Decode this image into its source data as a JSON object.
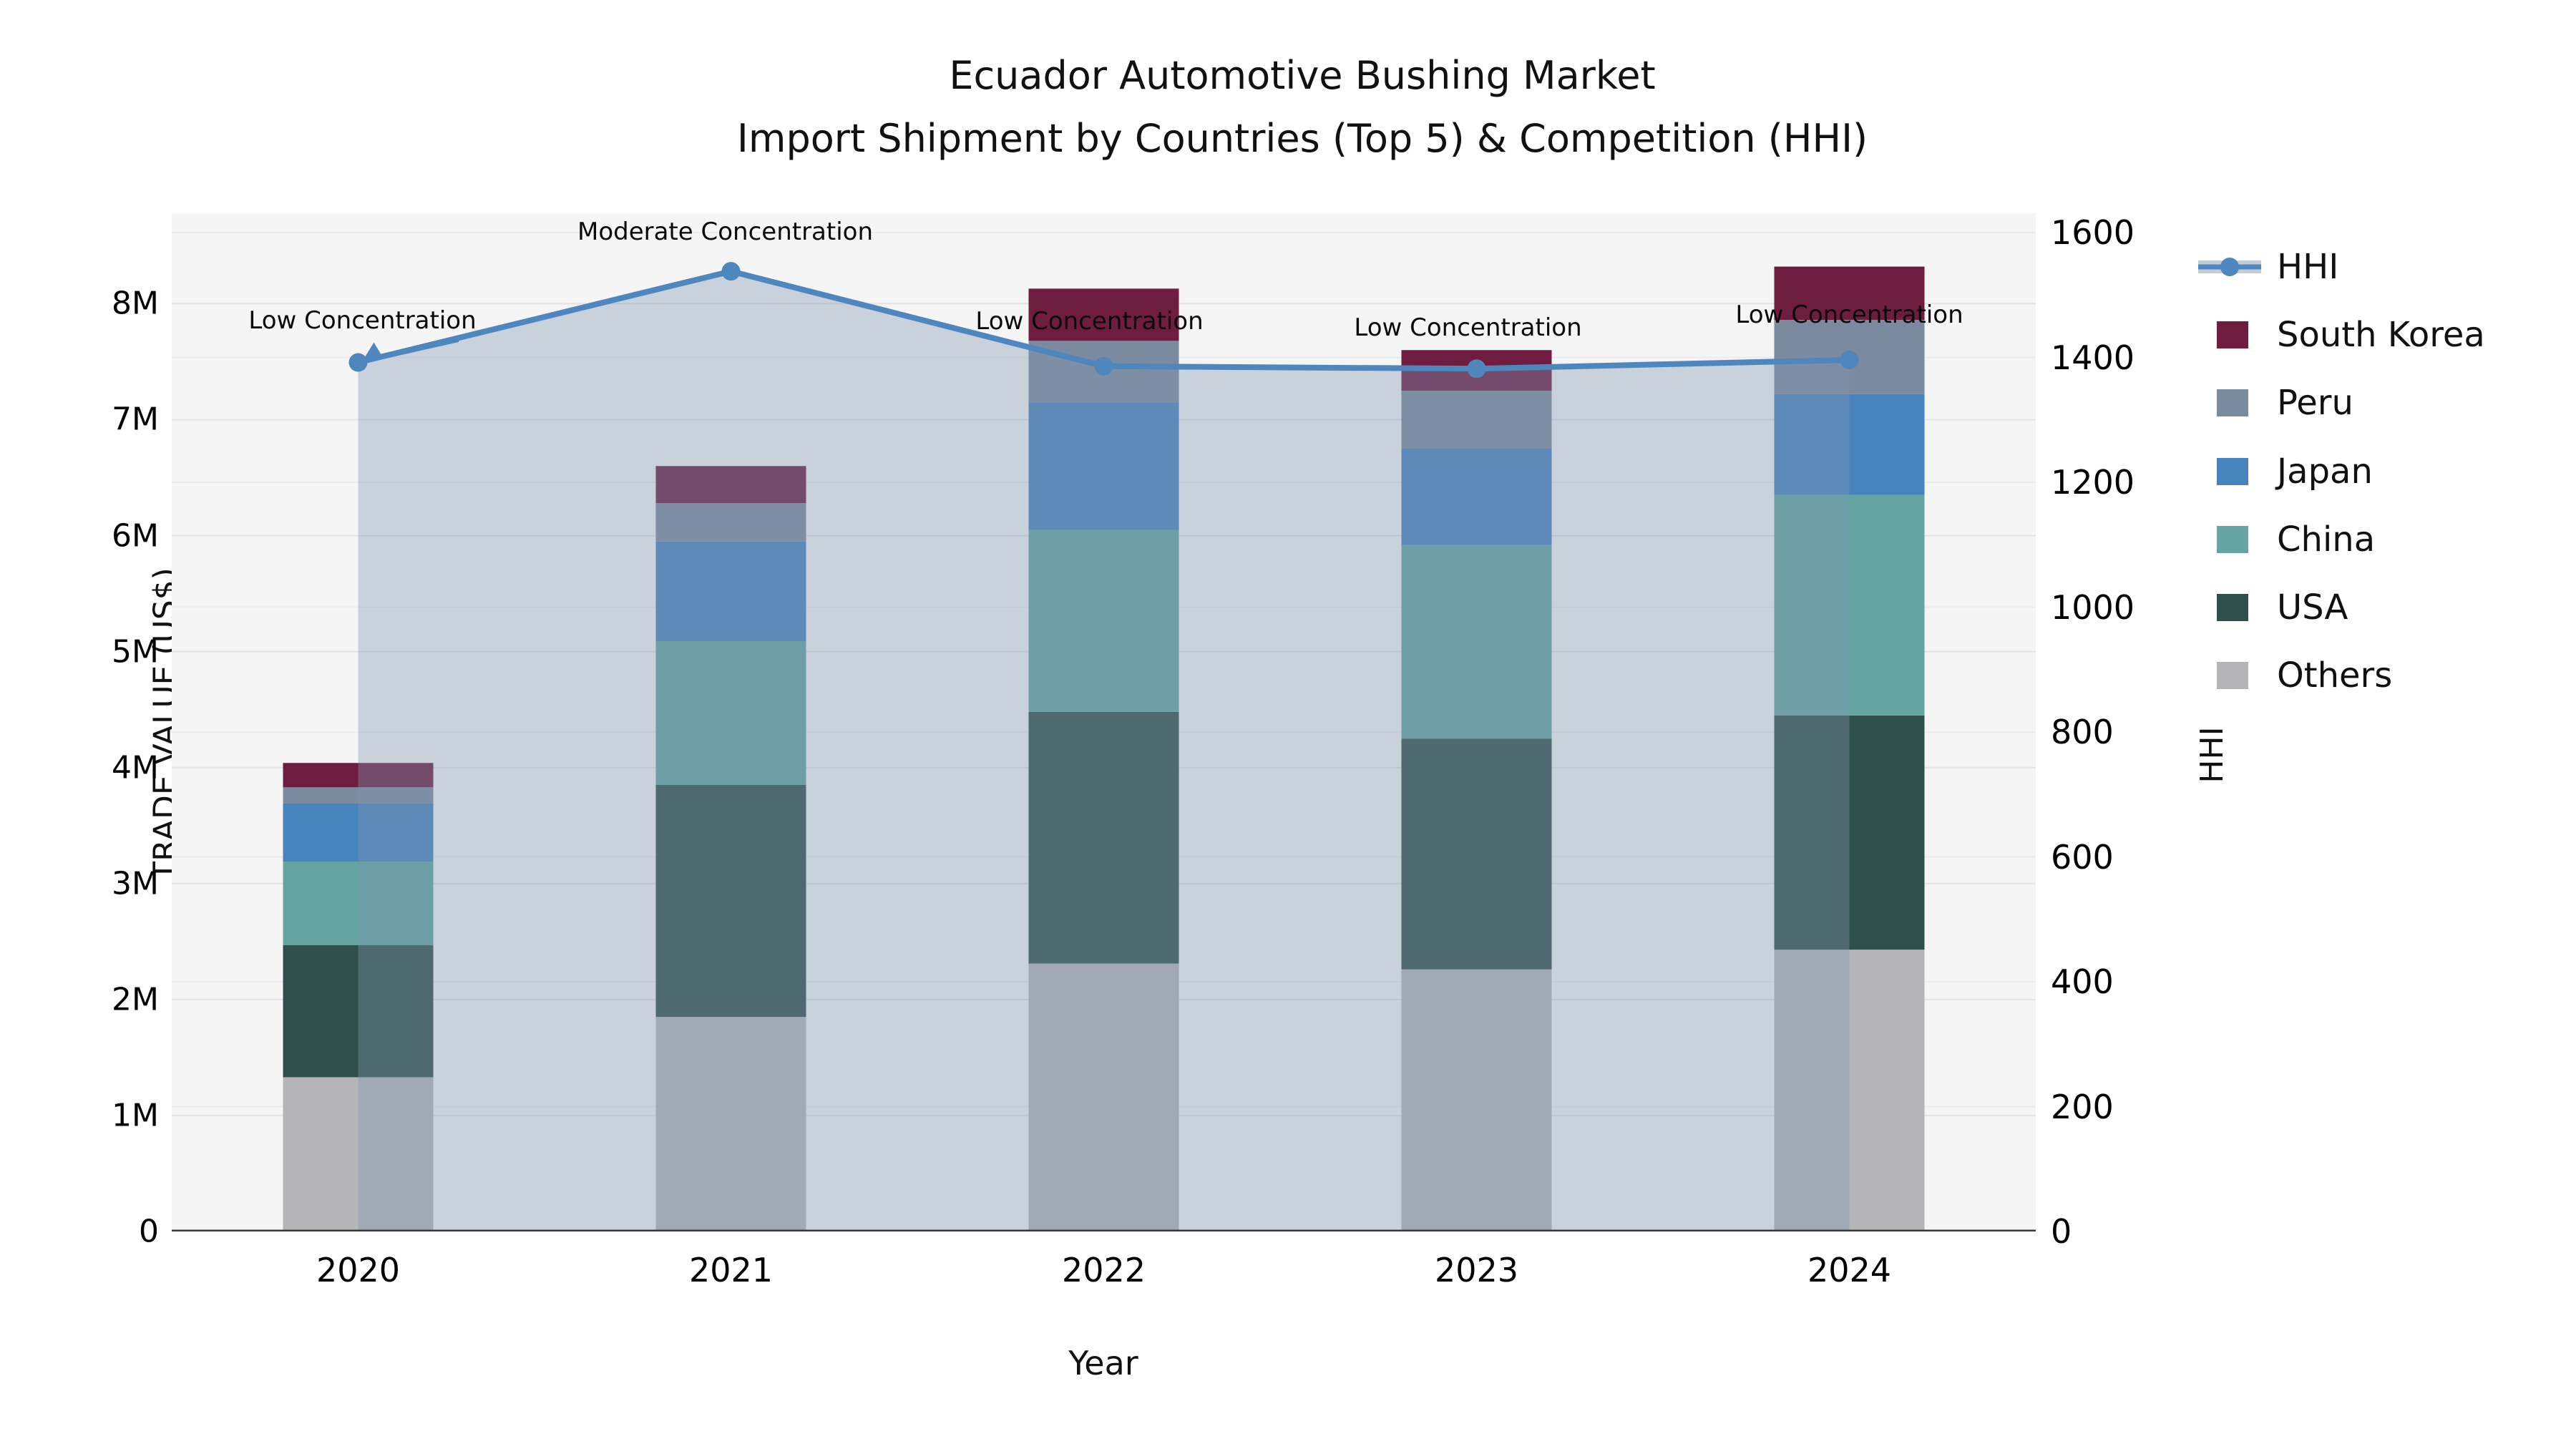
{
  "title": {
    "line1": "Ecuador Automotive Bushing Market",
    "line2": "Import Shipment by Countries (Top 5) & Competition (HHI)"
  },
  "axes": {
    "x_label": "Year",
    "left_label": "TRADE VALUE (US$)",
    "right_label": "HHI",
    "left_ticks": [
      "0",
      "1M",
      "2M",
      "3M",
      "4M",
      "5M",
      "6M",
      "7M",
      "8M"
    ],
    "right_ticks": [
      "0",
      "200",
      "400",
      "600",
      "800",
      "1000",
      "1200",
      "1400",
      "1600"
    ],
    "x_ticks": [
      "2020",
      "2021",
      "2022",
      "2023",
      "2024"
    ]
  },
  "legend": {
    "items": [
      {
        "label": "HHI",
        "type": "line",
        "color": "#4d87bd"
      },
      {
        "label": "South Korea",
        "type": "swatch",
        "color": "#6e1d41"
      },
      {
        "label": "Peru",
        "type": "swatch",
        "color": "#7b8a9e"
      },
      {
        "label": "Japan",
        "type": "swatch",
        "color": "#4783bd"
      },
      {
        "label": "China",
        "type": "swatch",
        "color": "#65a5a1"
      },
      {
        "label": "USA",
        "type": "swatch",
        "color": "#2f4f4a"
      },
      {
        "label": "Others",
        "type": "swatch",
        "color": "#b5b5b8"
      }
    ]
  },
  "chart_data": [
    {
      "type": "bar",
      "stacked": true,
      "categories": [
        "2020",
        "2021",
        "2022",
        "2023",
        "2024"
      ],
      "value_unit": "million US$",
      "xlabel": "Year",
      "ylabel": "TRADE VALUE (US$)",
      "ylim": [
        0,
        8780000
      ],
      "grid": true,
      "legend_position": "right",
      "series": [
        {
          "name": "Others",
          "color": "#b5b5b8",
          "values": [
            1.33,
            1.85,
            2.31,
            2.26,
            2.43
          ]
        },
        {
          "name": "USA",
          "color": "#2f4f4a",
          "values": [
            1.14,
            2.0,
            2.17,
            1.99,
            2.02
          ]
        },
        {
          "name": "China",
          "color": "#65a5a1",
          "values": [
            0.72,
            1.24,
            1.57,
            1.67,
            1.9
          ]
        },
        {
          "name": "Japan",
          "color": "#4783bd",
          "values": [
            0.5,
            0.86,
            1.1,
            0.83,
            0.87
          ]
        },
        {
          "name": "Peru",
          "color": "#7b8a9e",
          "values": [
            0.14,
            0.33,
            0.53,
            0.5,
            0.64
          ]
        },
        {
          "name": "South Korea",
          "color": "#6e1d41",
          "values": [
            0.21,
            0.32,
            0.45,
            0.35,
            0.46
          ]
        }
      ],
      "totals_musd": [
        4.04,
        6.6,
        8.13,
        7.6,
        8.32
      ]
    },
    {
      "type": "line",
      "name": "HHI",
      "axis": "right",
      "categories": [
        "2020",
        "2021",
        "2022",
        "2023",
        "2024"
      ],
      "values": [
        1392,
        1538,
        1386,
        1382,
        1396
      ],
      "ylim": [
        0,
        1631
      ],
      "ylabel": "HHI",
      "color": "#4d87bd",
      "marker": "circle",
      "area_fill": "rgba(130,150,175,0.38)",
      "annotations": [
        {
          "text": "Low Concentration",
          "arrow": true
        },
        {
          "text": "Moderate Concentration",
          "arrow": false
        },
        {
          "text": "Low Concentration",
          "arrow": false
        },
        {
          "text": "Low Concentration",
          "arrow": false
        },
        {
          "text": "Low Concentration",
          "arrow": false
        }
      ]
    }
  ]
}
